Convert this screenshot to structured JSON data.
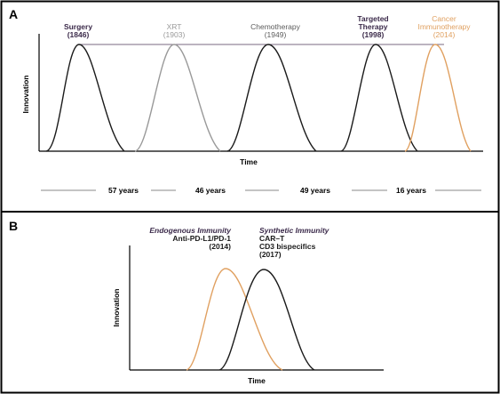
{
  "panel_a": {
    "letter": "A",
    "ylabel": "Innovation",
    "xlabel": "Time",
    "therapies": [
      {
        "name": "Surgery",
        "year": "(1846)",
        "color": "#3b2a4a"
      },
      {
        "name": "XRT",
        "year": "(1903)",
        "color": "#9a9a9a"
      },
      {
        "name": "Chemotherapy",
        "year": "(1949)",
        "color": "#5c5c5c"
      },
      {
        "name_line1": "Targeted",
        "name_line2": "Therapy",
        "year": "(1998)",
        "color": "#3b2a4a"
      },
      {
        "name_line1": "Cancer",
        "name_line2": "Immunotherapy",
        "year": "(2014)",
        "color": "#e0a060"
      }
    ],
    "intervals": [
      "57 years",
      "46 years",
      "49 years",
      "16 years"
    ]
  },
  "panel_b": {
    "letter": "B",
    "ylabel": "Innovation",
    "xlabel": "Time",
    "endogenous": {
      "title": "Endogenous Immunity",
      "line2": "Anti-PD-L1/PD-1",
      "year": "(2014)",
      "color": "#e0a060"
    },
    "synthetic": {
      "title": "Synthetic Immunity",
      "line2": "CAR–T",
      "line3": "CD3 bispecifics",
      "year": "(2017)",
      "color": "#111111"
    }
  }
}
